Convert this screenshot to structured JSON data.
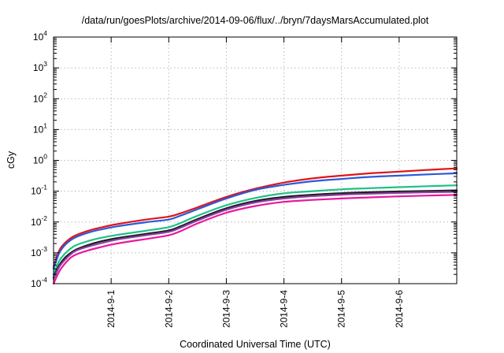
{
  "chart_data": {
    "type": "line",
    "title": "/data/run/goesPlots/archive/2014-09-06/flux/../bryn/7daysMarsAccumulated.plot",
    "xlabel": "Coordinated Universal Time (UTC)",
    "ylabel": "cGy",
    "y_scale": "log",
    "ylim": [
      0.0001,
      10000
    ],
    "y_ticks": [
      {
        "base": "10",
        "exp": "-4",
        "value": 0.0001
      },
      {
        "base": "10",
        "exp": "-3",
        "value": 0.001
      },
      {
        "base": "10",
        "exp": "-2",
        "value": 0.01
      },
      {
        "base": "10",
        "exp": "-1",
        "value": 0.1
      },
      {
        "base": "10",
        "exp": "0",
        "value": 1
      },
      {
        "base": "10",
        "exp": "1",
        "value": 10
      },
      {
        "base": "10",
        "exp": "2",
        "value": 100
      },
      {
        "base": "10",
        "exp": "3",
        "value": 1000
      },
      {
        "base": "10",
        "exp": "4",
        "value": 10000
      }
    ],
    "xlim": [
      "2014-08-31T00:00",
      "2014-09-07T00:00"
    ],
    "x_ticks": [
      "2014-9-1",
      "2014-9-2",
      "2014-9-3",
      "2014-9-4",
      "2014-9-5",
      "2014-9-6"
    ],
    "grid": true,
    "legend": "none",
    "x": [
      "2014-08-31T00:00",
      "2014-08-31T02:24",
      "2014-08-31T04:48",
      "2014-08-31T07:12",
      "2014-08-31T09:36",
      "2014-08-31T14:24",
      "2014-08-31T19:12",
      "2014-09-01T02:24",
      "2014-09-01T14:24",
      "2014-09-02T00:00",
      "2014-09-02T04:48",
      "2014-09-02T12:00",
      "2014-09-03T00:00",
      "2014-09-03T12:00",
      "2014-09-04T00:00",
      "2014-09-04T12:00",
      "2014-09-05T00:00",
      "2014-09-05T12:00",
      "2014-09-06T00:00",
      "2014-09-06T12:00",
      "2014-09-07T00:00"
    ],
    "series": [
      {
        "color": "#e0141b",
        "values": [
          0.00035,
          0.0012,
          0.0021,
          0.003,
          0.0038,
          0.0052,
          0.0065,
          0.0085,
          0.012,
          0.015,
          0.019,
          0.03,
          0.065,
          0.12,
          0.19,
          0.26,
          0.32,
          0.38,
          0.43,
          0.49,
          0.55
        ]
      },
      {
        "color": "#2a5bd8",
        "values": [
          0.0003,
          0.001,
          0.0018,
          0.0026,
          0.0033,
          0.0045,
          0.0056,
          0.0072,
          0.0098,
          0.012,
          0.016,
          0.026,
          0.058,
          0.11,
          0.16,
          0.21,
          0.25,
          0.29,
          0.32,
          0.35,
          0.38
        ]
      },
      {
        "color": "#1fc08a",
        "values": [
          0.0002,
          0.00055,
          0.00095,
          0.0014,
          0.0018,
          0.0024,
          0.003,
          0.0038,
          0.0052,
          0.0068,
          0.0092,
          0.016,
          0.035,
          0.06,
          0.085,
          0.1,
          0.115,
          0.125,
          0.135,
          0.145,
          0.155
        ]
      },
      {
        "color": "#1c1c1c",
        "values": [
          0.00016,
          0.0004,
          0.0007,
          0.001,
          0.0013,
          0.0018,
          0.0023,
          0.003,
          0.0041,
          0.0053,
          0.0072,
          0.0125,
          0.028,
          0.048,
          0.065,
          0.077,
          0.086,
          0.093,
          0.098,
          0.102,
          0.106
        ]
      },
      {
        "color": "#8a3fa0",
        "values": [
          0.00014,
          0.00035,
          0.0006,
          0.0009,
          0.0012,
          0.0016,
          0.002,
          0.0027,
          0.0037,
          0.0048,
          0.0065,
          0.0112,
          0.025,
          0.043,
          0.058,
          0.069,
          0.077,
          0.083,
          0.088,
          0.092,
          0.095
        ]
      },
      {
        "color": "#e8189e",
        "values": [
          0.0001,
          0.00025,
          0.00045,
          0.0007,
          0.0009,
          0.0012,
          0.0015,
          0.002,
          0.0028,
          0.0037,
          0.005,
          0.009,
          0.02,
          0.033,
          0.045,
          0.052,
          0.058,
          0.063,
          0.068,
          0.072,
          0.076
        ]
      }
    ]
  }
}
